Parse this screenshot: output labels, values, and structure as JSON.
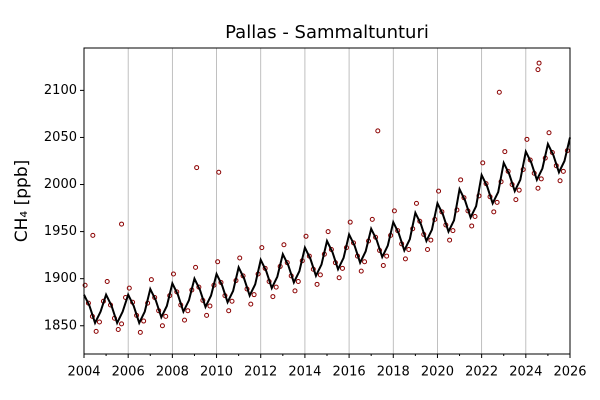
{
  "chart_data": {
    "type": "scatter",
    "title": "Pallas - Sammaltunturi",
    "y_label": "CH₄ [ppb]",
    "xlim": [
      2004,
      2026
    ],
    "ylim": [
      1820,
      2145
    ],
    "xticks": [
      2004,
      2006,
      2008,
      2010,
      2012,
      2014,
      2016,
      2018,
      2020,
      2022,
      2024,
      2026
    ],
    "xminor": [
      2005,
      2007,
      2009,
      2011,
      2013,
      2015,
      2017,
      2019,
      2021,
      2023,
      2025
    ],
    "yticks": [
      1850,
      1900,
      1950,
      2000,
      2050,
      2100
    ],
    "grid": "x",
    "series": [
      {
        "mode": "markers",
        "color": "#8b0000",
        "x": [
          2004.05,
          2004.2,
          2004.38,
          2004.55,
          2004.7,
          2004.88,
          2005.05,
          2005.2,
          2005.38,
          2005.55,
          2005.7,
          2005.88,
          2006.05,
          2006.2,
          2006.38,
          2006.55,
          2006.7,
          2006.88,
          2007.05,
          2007.2,
          2007.38,
          2007.55,
          2007.7,
          2007.88,
          2008.05,
          2008.2,
          2008.38,
          2008.55,
          2008.7,
          2008.88,
          2009.05,
          2009.2,
          2009.38,
          2009.55,
          2009.7,
          2009.88,
          2010.05,
          2010.2,
          2010.38,
          2010.55,
          2010.7,
          2010.88,
          2011.05,
          2011.2,
          2011.38,
          2011.55,
          2011.7,
          2011.88,
          2012.05,
          2012.2,
          2012.38,
          2012.55,
          2012.7,
          2012.88,
          2013.05,
          2013.2,
          2013.38,
          2013.55,
          2013.7,
          2013.88,
          2014.05,
          2014.2,
          2014.38,
          2014.55,
          2014.7,
          2014.88,
          2015.05,
          2015.2,
          2015.38,
          2015.55,
          2015.7,
          2015.88,
          2016.05,
          2016.2,
          2016.38,
          2016.55,
          2016.7,
          2016.88,
          2017.05,
          2017.2,
          2017.38,
          2017.55,
          2017.7,
          2017.88,
          2018.05,
          2018.2,
          2018.38,
          2018.55,
          2018.7,
          2018.88,
          2019.05,
          2019.2,
          2019.38,
          2019.55,
          2019.7,
          2019.88,
          2020.05,
          2020.2,
          2020.38,
          2020.55,
          2020.7,
          2020.88,
          2021.05,
          2021.2,
          2021.38,
          2021.55,
          2021.7,
          2021.88,
          2022.05,
          2022.2,
          2022.38,
          2022.55,
          2022.7,
          2022.88,
          2023.05,
          2023.2,
          2023.38,
          2023.55,
          2023.7,
          2023.88,
          2024.05,
          2024.2,
          2024.38,
          2024.55,
          2024.7,
          2024.88,
          2025.05,
          2025.2,
          2025.38,
          2025.55,
          2025.7,
          2025.88,
          2009.1,
          2010.1,
          2017.3,
          2024.6,
          2024.55,
          2022.8,
          2005.7,
          2004.4
        ],
        "values": [
          1893,
          1874,
          1860,
          1844,
          1854,
          1876,
          1897,
          1872,
          1858,
          1846,
          1852,
          1880,
          1890,
          1875,
          1861,
          1843,
          1855,
          1874,
          1899,
          1880,
          1866,
          1850,
          1860,
          1882,
          1905,
          1886,
          1872,
          1856,
          1866,
          1888,
          1912,
          1891,
          1877,
          1861,
          1871,
          1893,
          1918,
          1896,
          1882,
          1866,
          1876,
          1898,
          1922,
          1903,
          1889,
          1873,
          1883,
          1905,
          1933,
          1911,
          1897,
          1881,
          1891,
          1913,
          1936,
          1917,
          1903,
          1887,
          1897,
          1919,
          1945,
          1924,
          1910,
          1894,
          1904,
          1926,
          1950,
          1931,
          1917,
          1901,
          1911,
          1933,
          1960,
          1938,
          1924,
          1908,
          1918,
          1940,
          1963,
          1944,
          1930,
          1914,
          1924,
          1946,
          1972,
          1951,
          1937,
          1921,
          1931,
          1953,
          1980,
          1961,
          1947,
          1931,
          1941,
          1963,
          1993,
          1971,
          1957,
          1941,
          1951,
          1973,
          2005,
          1986,
          1972,
          1956,
          1966,
          1988,
          2023,
          2001,
          1987,
          1971,
          1981,
          2003,
          2035,
          2014,
          2000,
          1984,
          1994,
          2016,
          2048,
          2026,
          2012,
          1996,
          2006,
          2028,
          2055,
          2034,
          2020,
          2004,
          2014,
          2036,
          2018,
          2013,
          2057,
          2129,
          2122,
          2098,
          1958,
          1946
        ]
      },
      {
        "mode": "line",
        "color": "#000000",
        "x": [
          2004,
          2004.25,
          2004.5,
          2004.75,
          2005,
          2005.25,
          2005.5,
          2005.75,
          2006,
          2006.25,
          2006.5,
          2006.75,
          2007,
          2007.25,
          2007.5,
          2007.75,
          2008,
          2008.25,
          2008.5,
          2008.75,
          2009,
          2009.25,
          2009.5,
          2009.75,
          2010,
          2010.25,
          2010.5,
          2010.75,
          2011,
          2011.25,
          2011.5,
          2011.75,
          2012,
          2012.25,
          2012.5,
          2012.75,
          2013,
          2013.25,
          2013.5,
          2013.75,
          2014,
          2014.25,
          2014.5,
          2014.75,
          2015,
          2015.25,
          2015.5,
          2015.75,
          2016,
          2016.25,
          2016.5,
          2016.75,
          2017,
          2017.25,
          2017.5,
          2017.75,
          2018,
          2018.25,
          2018.5,
          2018.75,
          2019,
          2019.25,
          2019.5,
          2019.75,
          2020,
          2020.25,
          2020.5,
          2020.75,
          2021,
          2021.25,
          2021.5,
          2021.75,
          2022,
          2022.25,
          2022.5,
          2022.75,
          2023,
          2023.25,
          2023.5,
          2023.75,
          2024,
          2024.25,
          2024.5,
          2024.75,
          2025,
          2025.25,
          2025.5,
          2025.75,
          2026
        ],
        "values": [
          1883,
          1871,
          1853,
          1865,
          1883,
          1871,
          1853,
          1865,
          1883,
          1871,
          1853,
          1865,
          1889,
          1877,
          1859,
          1871,
          1895,
          1883,
          1865,
          1877,
          1900,
          1888,
          1870,
          1882,
          1905,
          1893,
          1875,
          1887,
          1912,
          1900,
          1882,
          1894,
          1920,
          1908,
          1890,
          1902,
          1926,
          1914,
          1896,
          1908,
          1933,
          1921,
          1903,
          1915,
          1940,
          1928,
          1910,
          1922,
          1947,
          1935,
          1917,
          1929,
          1953,
          1941,
          1923,
          1935,
          1960,
          1948,
          1930,
          1942,
          1970,
          1958,
          1940,
          1952,
          1980,
          1968,
          1950,
          1962,
          1995,
          1983,
          1965,
          1977,
          2010,
          1998,
          1980,
          1992,
          2023,
          2011,
          1993,
          2005,
          2035,
          2023,
          2005,
          2017,
          2043,
          2031,
          2013,
          2025,
          2050
        ]
      }
    ]
  }
}
